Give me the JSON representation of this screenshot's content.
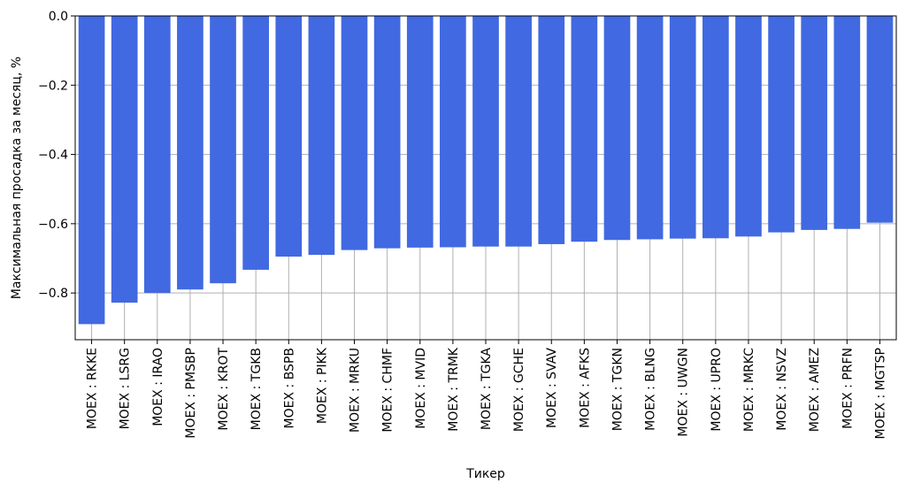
{
  "chart_data": {
    "type": "bar",
    "title": "",
    "xlabel": "Тикер",
    "ylabel": "Максимальная просадка за месяц, %",
    "ylim": [
      -0.935,
      0.0
    ],
    "yticks": [
      0.0,
      -0.2,
      -0.4,
      -0.6,
      -0.8
    ],
    "ytick_labels": [
      "0.0",
      "−0.2",
      "−0.4",
      "−0.6",
      "−0.8"
    ],
    "grid": true,
    "bar_color": "#4169e1",
    "grid_color": "#b0b0b0",
    "categories": [
      "MOEX : RKKE",
      "MOEX : LSRG",
      "MOEX : IRAO",
      "MOEX : PMSBP",
      "MOEX : KROT",
      "MOEX : TGKB",
      "MOEX : BSPB",
      "MOEX : PIKK",
      "MOEX : MRKU",
      "MOEX : CHMF",
      "MOEX : MVID",
      "MOEX : TRMK",
      "MOEX : TGKA",
      "MOEX : GCHE",
      "MOEX : SVAV",
      "MOEX : AFKS",
      "MOEX : TGKN",
      "MOEX : BLNG",
      "MOEX : UWGN",
      "MOEX : UPRO",
      "MOEX : MRKC",
      "MOEX : NSVZ",
      "MOEX : AMEZ",
      "MOEX : PRFN",
      "MOEX : MGTSP"
    ],
    "values": [
      -0.89,
      -0.828,
      -0.8,
      -0.79,
      -0.772,
      -0.733,
      -0.695,
      -0.69,
      -0.676,
      -0.671,
      -0.669,
      -0.668,
      -0.666,
      -0.666,
      -0.659,
      -0.652,
      -0.647,
      -0.645,
      -0.643,
      -0.642,
      -0.637,
      -0.625,
      -0.618,
      -0.615,
      -0.597
    ]
  }
}
